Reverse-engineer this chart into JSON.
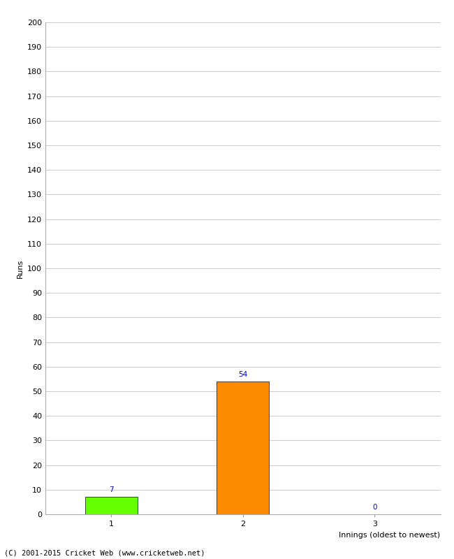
{
  "categories": [
    1,
    2,
    3
  ],
  "values": [
    7,
    54,
    0
  ],
  "bar_colors": [
    "#66ff00",
    "#ff8c00",
    "#ff8c00"
  ],
  "xlabel": "Innings (oldest to newest)",
  "ylabel": "Runs",
  "ylim": [
    0,
    200
  ],
  "yticks": [
    0,
    10,
    20,
    30,
    40,
    50,
    60,
    70,
    80,
    90,
    100,
    110,
    120,
    130,
    140,
    150,
    160,
    170,
    180,
    190,
    200
  ],
  "xticks": [
    1,
    2,
    3
  ],
  "value_label_color": "#0000cc",
  "value_fontsize": 7.5,
  "footer": "(C) 2001-2015 Cricket Web (www.cricketweb.net)",
  "background_color": "#ffffff",
  "grid_color": "#cccccc",
  "axis_label_fontsize": 8,
  "tick_fontsize": 8,
  "bar_width": 0.4
}
